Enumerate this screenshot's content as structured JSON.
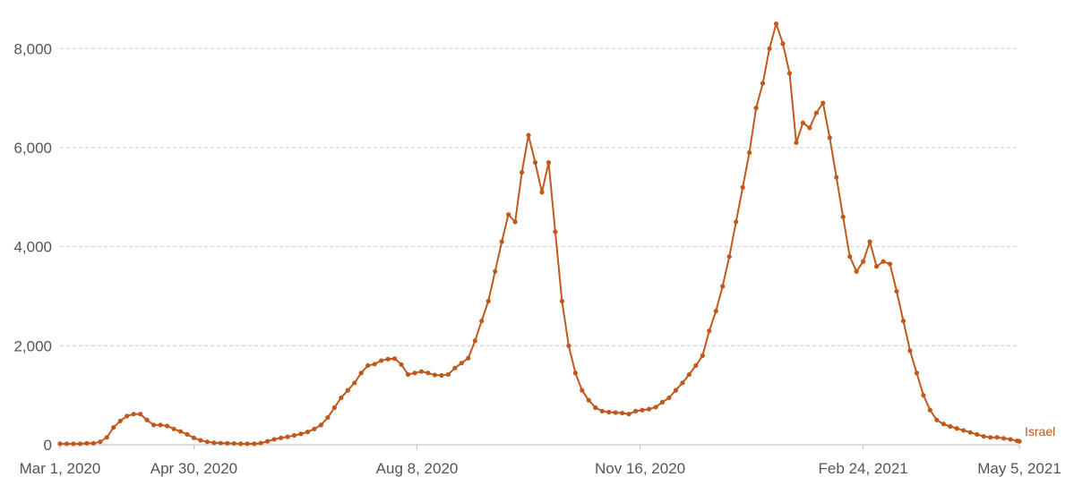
{
  "chart_data": {
    "type": "line",
    "x": [
      "2020-03-01",
      "2020-03-04",
      "2020-03-07",
      "2020-03-10",
      "2020-03-13",
      "2020-03-16",
      "2020-03-19",
      "2020-03-22",
      "2020-03-25",
      "2020-03-28",
      "2020-03-31",
      "2020-04-03",
      "2020-04-06",
      "2020-04-09",
      "2020-04-12",
      "2020-04-15",
      "2020-04-18",
      "2020-04-21",
      "2020-04-24",
      "2020-04-27",
      "2020-04-30",
      "2020-05-03",
      "2020-05-06",
      "2020-05-09",
      "2020-05-12",
      "2020-05-15",
      "2020-05-18",
      "2020-05-21",
      "2020-05-24",
      "2020-05-27",
      "2020-05-30",
      "2020-06-02",
      "2020-06-05",
      "2020-06-08",
      "2020-06-11",
      "2020-06-14",
      "2020-06-17",
      "2020-06-20",
      "2020-06-23",
      "2020-06-26",
      "2020-06-29",
      "2020-07-02",
      "2020-07-05",
      "2020-07-08",
      "2020-07-11",
      "2020-07-14",
      "2020-07-17",
      "2020-07-20",
      "2020-07-23",
      "2020-07-26",
      "2020-07-29",
      "2020-08-01",
      "2020-08-04",
      "2020-08-07",
      "2020-08-10",
      "2020-08-13",
      "2020-08-16",
      "2020-08-19",
      "2020-08-22",
      "2020-08-25",
      "2020-08-28",
      "2020-08-31",
      "2020-09-03",
      "2020-09-06",
      "2020-09-09",
      "2020-09-12",
      "2020-09-15",
      "2020-09-18",
      "2020-09-21",
      "2020-09-24",
      "2020-09-27",
      "2020-09-30",
      "2020-10-03",
      "2020-10-06",
      "2020-10-09",
      "2020-10-12",
      "2020-10-15",
      "2020-10-18",
      "2020-10-21",
      "2020-10-24",
      "2020-10-27",
      "2020-10-30",
      "2020-11-02",
      "2020-11-05",
      "2020-11-08",
      "2020-11-11",
      "2020-11-14",
      "2020-11-17",
      "2020-11-20",
      "2020-11-23",
      "2020-11-26",
      "2020-11-29",
      "2020-12-02",
      "2020-12-05",
      "2020-12-08",
      "2020-12-11",
      "2020-12-14",
      "2020-12-17",
      "2020-12-20",
      "2020-12-23",
      "2020-12-26",
      "2020-12-29",
      "2021-01-01",
      "2021-01-04",
      "2021-01-07",
      "2021-01-10",
      "2021-01-13",
      "2021-01-16",
      "2021-01-19",
      "2021-01-22",
      "2021-01-25",
      "2021-01-28",
      "2021-01-31",
      "2021-02-03",
      "2021-02-06",
      "2021-02-09",
      "2021-02-12",
      "2021-02-15",
      "2021-02-18",
      "2021-02-21",
      "2021-02-24",
      "2021-02-27",
      "2021-03-02",
      "2021-03-05",
      "2021-03-08",
      "2021-03-11",
      "2021-03-14",
      "2021-03-17",
      "2021-03-20",
      "2021-03-23",
      "2021-03-26",
      "2021-03-29",
      "2021-04-01",
      "2021-04-04",
      "2021-04-07",
      "2021-04-10",
      "2021-04-13",
      "2021-04-16",
      "2021-04-19",
      "2021-04-22",
      "2021-04-25",
      "2021-04-28",
      "2021-05-01",
      "2021-05-04",
      "2021-05-05"
    ],
    "series": [
      {
        "name": "Israel",
        "color": "#c0591b",
        "values": [
          20,
          20,
          20,
          20,
          30,
          30,
          60,
          150,
          350,
          480,
          580,
          620,
          620,
          500,
          400,
          400,
          380,
          320,
          270,
          210,
          140,
          90,
          60,
          40,
          35,
          30,
          25,
          20,
          20,
          20,
          35,
          70,
          110,
          140,
          160,
          190,
          220,
          260,
          320,
          400,
          550,
          750,
          950,
          1100,
          1250,
          1450,
          1600,
          1630,
          1700,
          1730,
          1740,
          1620,
          1420,
          1450,
          1480,
          1450,
          1410,
          1400,
          1420,
          1550,
          1650,
          1750,
          2100,
          2500,
          2900,
          3500,
          4100,
          4650,
          4500,
          5500,
          6250,
          5700,
          5100,
          5700,
          4300,
          2900,
          2000,
          1450,
          1100,
          900,
          750,
          680,
          660,
          650,
          640,
          620,
          680,
          700,
          720,
          760,
          860,
          950,
          1100,
          1250,
          1420,
          1600,
          1800,
          2300,
          2700,
          3200,
          3800,
          4500,
          5200,
          5900,
          6800,
          7300,
          8000,
          8500,
          8100,
          7500,
          6100,
          6500,
          6400,
          6700,
          6900,
          6200,
          5400,
          4600,
          3800,
          3500,
          3700,
          4100,
          3600,
          3700,
          3650,
          3100,
          2500,
          1900,
          1450,
          1000,
          700,
          500,
          420,
          370,
          330,
          290,
          250,
          210,
          170,
          150,
          150,
          130,
          110,
          80,
          70
        ]
      }
    ],
    "xlim": [
      "2020-03-01",
      "2021-05-05"
    ],
    "xticks": [
      {
        "value": "2020-03-01",
        "label": "Mar 1, 2020"
      },
      {
        "value": "2020-04-30",
        "label": "Apr 30, 2020"
      },
      {
        "value": "2020-08-08",
        "label": "Aug 8, 2020"
      },
      {
        "value": "2020-11-16",
        "label": "Nov 16, 2020"
      },
      {
        "value": "2021-02-24",
        "label": "Feb 24, 2021"
      },
      {
        "value": "2021-05-05",
        "label": "May 5, 2021"
      }
    ],
    "ylim": [
      0,
      8800
    ],
    "yticks": [
      0,
      {
        "value": 2000,
        "label": "2,000"
      },
      {
        "value": 4000,
        "label": "4,000"
      },
      {
        "value": 6000,
        "label": "6,000"
      },
      {
        "value": 8000,
        "label": "8,000"
      }
    ],
    "grid": true
  }
}
